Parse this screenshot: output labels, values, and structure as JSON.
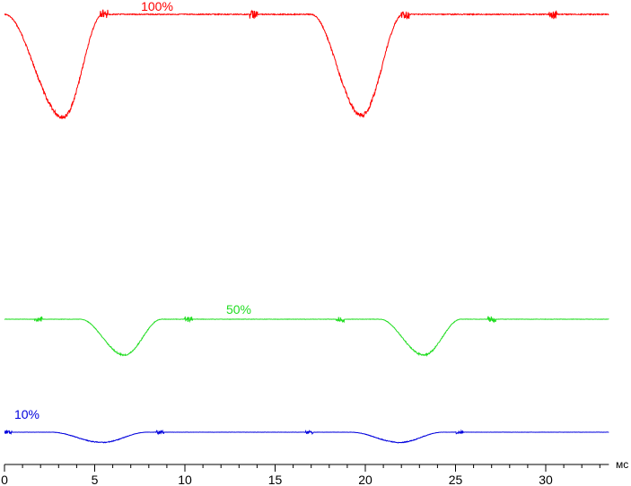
{
  "chart_data": {
    "type": "line",
    "title": "",
    "xlabel": "мс",
    "ylabel": "",
    "xlim": [
      0,
      33.5
    ],
    "x_ticks": [
      0,
      5,
      10,
      15,
      20,
      25,
      30
    ],
    "x_tick_labels": [
      "0",
      "5",
      "10",
      "15",
      "20",
      "25",
      "30"
    ],
    "grid": false,
    "legend": "none",
    "series": [
      {
        "name": "100%",
        "color": "#ff0000",
        "baseline": 1.0,
        "dips": [
          {
            "start": 0.0,
            "min_at": 3.25,
            "end": 5.45,
            "depth": 0.98
          },
          {
            "start": 17.0,
            "min_at": 19.8,
            "end": 22.1,
            "depth": 0.96
          }
        ],
        "noise_bursts": [
          5.5,
          13.8,
          22.2,
          30.4
        ]
      },
      {
        "name": "50%",
        "color": "#22dd22",
        "baseline": 1.0,
        "dips": [
          {
            "start": 4.2,
            "min_at": 6.65,
            "end": 8.7,
            "depth": 0.95
          },
          {
            "start": 20.8,
            "min_at": 23.25,
            "end": 25.3,
            "depth": 0.95
          }
        ],
        "noise_bursts": [
          1.9,
          10.2,
          18.6,
          27.0
        ]
      },
      {
        "name": "10%",
        "color": "#0000dd",
        "baseline": 1.0,
        "dips": [
          {
            "start": 2.6,
            "min_at": 5.4,
            "end": 7.9,
            "depth": 0.95
          },
          {
            "start": 19.2,
            "min_at": 21.9,
            "end": 24.3,
            "depth": 0.95
          }
        ],
        "noise_bursts": [
          0.2,
          8.6,
          16.9,
          25.2
        ]
      }
    ]
  }
}
